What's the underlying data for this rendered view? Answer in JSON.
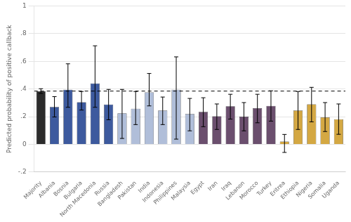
{
  "chart_data": {
    "type": "bar",
    "categories": [
      "Majority",
      "Albania",
      "Bosnia",
      "Bulgaria",
      "North Macedonia",
      "Russia",
      "Bangladesh",
      "Pakistan",
      "India",
      "Indonesia",
      "Philippines",
      "Malaysia",
      "Egypt",
      "Iran",
      "Iraq",
      "Lebanon",
      "Morocco",
      "Turkey",
      "Eritrea",
      "Ethiopia",
      "Nigeria",
      "Somalia",
      "Uganda"
    ],
    "values": [
      0.385,
      0.27,
      0.395,
      0.305,
      0.44,
      0.288,
      0.225,
      0.258,
      0.375,
      0.245,
      0.395,
      0.22,
      0.235,
      0.203,
      0.275,
      0.2,
      0.262,
      0.278,
      0.02,
      0.245,
      0.29,
      0.196,
      0.182
    ],
    "ci_lo": [
      0.368,
      0.198,
      0.268,
      0.248,
      0.268,
      0.178,
      0.043,
      0.143,
      0.278,
      0.143,
      0.038,
      0.098,
      0.128,
      0.108,
      0.183,
      0.098,
      0.156,
      0.168,
      -0.058,
      0.108,
      0.163,
      0.093,
      0.073
    ],
    "ci_hi": [
      0.402,
      0.345,
      0.582,
      0.382,
      0.712,
      0.397,
      0.397,
      0.382,
      0.512,
      0.342,
      0.632,
      0.332,
      0.337,
      0.292,
      0.362,
      0.302,
      0.362,
      0.387,
      0.072,
      0.382,
      0.412,
      0.302,
      0.292
    ],
    "colors": [
      "#2b2b2b",
      "#3d5a9e",
      "#3d5a9e",
      "#3d5a9e",
      "#3d5a9e",
      "#3d5a9e",
      "#b0bed9",
      "#b0bed9",
      "#b0bed9",
      "#b0bed9",
      "#b0bed9",
      "#b0bed9",
      "#6b4f6e",
      "#6b4f6e",
      "#6b4f6e",
      "#6b4f6e",
      "#6b4f6e",
      "#6b4f6e",
      "#d4a843",
      "#d4a843",
      "#d4a843",
      "#d4a843",
      "#d4a843"
    ],
    "dashed_line": 0.385,
    "ylabel": "Predicted probability of positive callback",
    "ylim": [
      -0.2,
      1.0
    ],
    "yticks": [
      {
        "value": -0.2,
        "label": "-.2"
      },
      0,
      {
        "value": 0.2,
        "label": ".2"
      },
      {
        "value": 0.4,
        "label": ".4"
      },
      {
        "value": 0.6,
        "label": ".6"
      },
      {
        "value": 0.8,
        "label": ".8"
      },
      1
    ],
    "grid": true
  }
}
